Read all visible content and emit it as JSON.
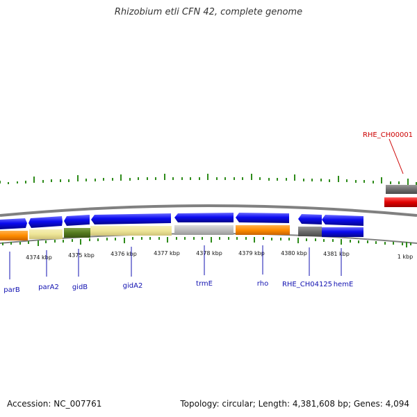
{
  "title": "Rhizobium etli CFN 42, complete genome",
  "footer": {
    "accession": "Accession: NC_007761",
    "summary": "Topology: circular; Length: 4,381,608 bp; Genes: 4,094"
  },
  "colors": {
    "forward_cds": "#0b0bf0",
    "cds_highlight": "#ff8c00",
    "pale_feature": "#eee597",
    "olive_feature": "#557a1f",
    "gray_feature": "#bdbdbd",
    "dark_gray_feature": "#6e6e6e",
    "red_feature": "#e00000",
    "tick_green": "#2e8b1a",
    "backbone": "#808080",
    "label_blue": "#1010b0",
    "label_red": "#cc0000"
  },
  "scale_labels": [
    "4374 kbp",
    "4375 kbp",
    "4376 kbp",
    "4377 kbp",
    "4378 kbp",
    "4379 kbp",
    "4380 kbp",
    "4381 kbp",
    "1 kbp"
  ],
  "gene_labels": [
    {
      "name": "parB",
      "color": "blue"
    },
    {
      "name": "parA2",
      "color": "blue"
    },
    {
      "name": "gidB",
      "color": "blue"
    },
    {
      "name": "gidA2",
      "color": "blue"
    },
    {
      "name": "trmE",
      "color": "blue"
    },
    {
      "name": "rho",
      "color": "blue"
    },
    {
      "name": "RHE_CH04125",
      "color": "blue"
    },
    {
      "name": "hemE",
      "color": "blue"
    },
    {
      "name": "RHE_CH00001",
      "color": "red"
    }
  ]
}
